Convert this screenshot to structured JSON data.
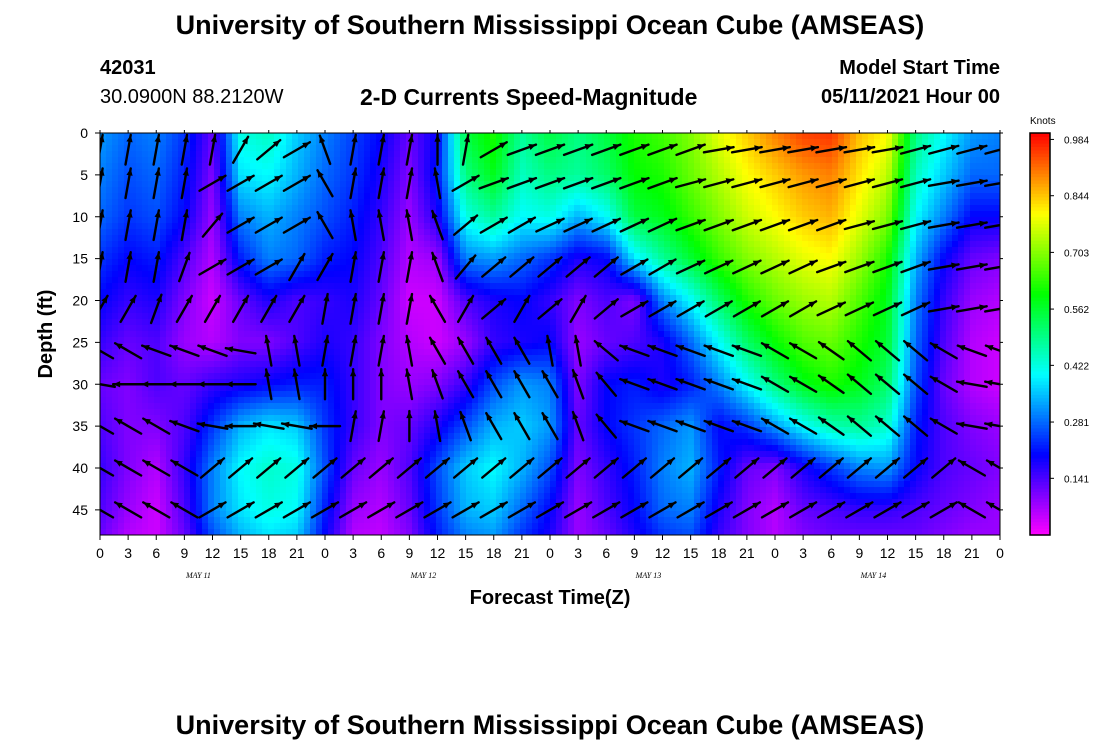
{
  "header": {
    "title_top": "University of Southern Mississippi Ocean Cube (AMSEAS)",
    "title_bottom": "University of Southern Mississippi Ocean Cube (AMSEAS)",
    "station_id": "42031",
    "station_location": "30.0900N  88.2120W",
    "chart_title": "2-D Currents Speed-Magnitude",
    "model_start_label": "Model Start Time",
    "model_start_value": "05/11/2021 Hour 00"
  },
  "chart_data": {
    "type": "heatmap",
    "title": "2-D Currents Speed-Magnitude",
    "xlabel": "Forecast Time(Z)",
    "ylabel": "Depth (ft)",
    "x_tick_labels": [
      "0",
      "3",
      "6",
      "9",
      "12",
      "15",
      "18",
      "21",
      "0",
      "3",
      "6",
      "9",
      "12",
      "15",
      "18",
      "21",
      "0",
      "3",
      "6",
      "9",
      "12",
      "15",
      "18",
      "21",
      "0",
      "3",
      "6",
      "9",
      "12",
      "15",
      "18",
      "21",
      "0"
    ],
    "day_labels": [
      "MAY 11",
      "MAY 12",
      "MAY 13",
      "MAY 14"
    ],
    "y_ticks": [
      0,
      5,
      10,
      15,
      20,
      25,
      30,
      35,
      40,
      45
    ],
    "ylim": [
      0,
      48
    ],
    "xlim_hours": [
      0,
      96
    ],
    "colorbar": {
      "units": "Knots",
      "tick_values": [
        0.984,
        0.844,
        0.703,
        0.562,
        0.422,
        0.281,
        0.141
      ],
      "tick_labels": [
        "0.984",
        "0.844",
        "0.703",
        "0.562",
        "0.422",
        "0.281",
        "0.141"
      ],
      "range": [
        0,
        1.0
      ],
      "colors": [
        "#ff00ff",
        "#8000ff",
        "#0000ff",
        "#0080ff",
        "#00ffff",
        "#00ff80",
        "#00ff00",
        "#80ff00",
        "#ffff00",
        "#ff8000",
        "#ff0000"
      ]
    },
    "speed_grid": {
      "hours": [
        0,
        3,
        6,
        9,
        12,
        15,
        18,
        21,
        24,
        27,
        30,
        33,
        36,
        39,
        42,
        45,
        48,
        51,
        54,
        57,
        60,
        63,
        66,
        69,
        72,
        75,
        78,
        81,
        84,
        87,
        90,
        93,
        96
      ],
      "depths_ft": [
        0,
        5,
        10,
        15,
        20,
        25,
        30,
        35,
        40,
        45,
        48
      ],
      "values": [
        [
          0.32,
          0.28,
          0.3,
          0.24,
          0.12,
          0.42,
          0.45,
          0.36,
          0.3,
          0.25,
          0.2,
          0.12,
          0.2,
          0.55,
          0.62,
          0.48,
          0.55,
          0.5,
          0.55,
          0.62,
          0.65,
          0.7,
          0.78,
          0.84,
          0.9,
          0.95,
          0.96,
          0.85,
          0.8,
          0.5,
          0.4,
          0.32,
          0.3
        ],
        [
          0.3,
          0.26,
          0.28,
          0.22,
          0.1,
          0.38,
          0.4,
          0.34,
          0.28,
          0.24,
          0.18,
          0.1,
          0.22,
          0.5,
          0.58,
          0.45,
          0.5,
          0.48,
          0.52,
          0.6,
          0.62,
          0.68,
          0.74,
          0.8,
          0.84,
          0.88,
          0.9,
          0.82,
          0.75,
          0.45,
          0.36,
          0.28,
          0.28
        ],
        [
          0.28,
          0.24,
          0.26,
          0.2,
          0.08,
          0.3,
          0.34,
          0.3,
          0.26,
          0.22,
          0.16,
          0.08,
          0.18,
          0.42,
          0.48,
          0.4,
          0.42,
          0.34,
          0.4,
          0.55,
          0.58,
          0.64,
          0.7,
          0.76,
          0.8,
          0.84,
          0.86,
          0.78,
          0.7,
          0.4,
          0.3,
          0.2,
          0.2
        ],
        [
          0.24,
          0.2,
          0.22,
          0.14,
          0.06,
          0.22,
          0.3,
          0.28,
          0.22,
          0.2,
          0.14,
          0.06,
          0.08,
          0.3,
          0.32,
          0.28,
          0.24,
          0.18,
          0.2,
          0.38,
          0.48,
          0.56,
          0.64,
          0.7,
          0.74,
          0.78,
          0.8,
          0.72,
          0.62,
          0.34,
          0.2,
          0.12,
          0.1
        ],
        [
          0.2,
          0.16,
          0.18,
          0.1,
          0.04,
          0.12,
          0.18,
          0.14,
          0.16,
          0.18,
          0.12,
          0.04,
          0.04,
          0.14,
          0.18,
          0.2,
          0.16,
          0.1,
          0.14,
          0.1,
          0.3,
          0.4,
          0.52,
          0.62,
          0.68,
          0.72,
          0.74,
          0.66,
          0.58,
          0.3,
          0.16,
          0.08,
          0.06
        ],
        [
          0.16,
          0.12,
          0.14,
          0.08,
          0.06,
          0.1,
          0.1,
          0.14,
          0.18,
          0.16,
          0.1,
          0.06,
          0.04,
          0.08,
          0.16,
          0.18,
          0.2,
          0.08,
          0.12,
          0.14,
          0.18,
          0.28,
          0.4,
          0.52,
          0.6,
          0.66,
          0.68,
          0.62,
          0.56,
          0.28,
          0.14,
          0.06,
          0.04
        ],
        [
          0.12,
          0.1,
          0.14,
          0.12,
          0.16,
          0.18,
          0.2,
          0.22,
          0.22,
          0.16,
          0.1,
          0.08,
          0.1,
          0.16,
          0.26,
          0.32,
          0.3,
          0.1,
          0.2,
          0.22,
          0.18,
          0.22,
          0.3,
          0.4,
          0.5,
          0.58,
          0.62,
          0.58,
          0.52,
          0.26,
          0.12,
          0.06,
          0.04
        ],
        [
          0.14,
          0.1,
          0.1,
          0.14,
          0.24,
          0.34,
          0.38,
          0.36,
          0.24,
          0.16,
          0.1,
          0.12,
          0.18,
          0.26,
          0.34,
          0.36,
          0.32,
          0.12,
          0.2,
          0.24,
          0.28,
          0.32,
          0.2,
          0.24,
          0.32,
          0.4,
          0.46,
          0.48,
          0.44,
          0.22,
          0.14,
          0.1,
          0.08
        ],
        [
          0.16,
          0.1,
          0.06,
          0.16,
          0.3,
          0.4,
          0.44,
          0.42,
          0.26,
          0.12,
          0.08,
          0.14,
          0.26,
          0.36,
          0.4,
          0.34,
          0.26,
          0.1,
          0.16,
          0.22,
          0.3,
          0.34,
          0.22,
          0.12,
          0.1,
          0.18,
          0.24,
          0.3,
          0.32,
          0.2,
          0.14,
          0.12,
          0.1
        ],
        [
          0.14,
          0.08,
          0.04,
          0.14,
          0.3,
          0.38,
          0.42,
          0.4,
          0.22,
          0.08,
          0.06,
          0.12,
          0.24,
          0.34,
          0.36,
          0.28,
          0.2,
          0.08,
          0.14,
          0.2,
          0.28,
          0.3,
          0.18,
          0.1,
          0.06,
          0.12,
          0.14,
          0.16,
          0.16,
          0.14,
          0.12,
          0.1,
          0.08
        ],
        [
          0.12,
          0.06,
          0.04,
          0.12,
          0.26,
          0.34,
          0.38,
          0.36,
          0.2,
          0.06,
          0.05,
          0.1,
          0.22,
          0.3,
          0.32,
          0.24,
          0.18,
          0.08,
          0.12,
          0.18,
          0.24,
          0.26,
          0.16,
          0.1,
          0.06,
          0.1,
          0.12,
          0.12,
          0.12,
          0.12,
          0.1,
          0.08,
          0.08
        ]
      ]
    }
  },
  "vectors": {
    "depths_ft": [
      2,
      6,
      11,
      16,
      21,
      26,
      30,
      35,
      40,
      45
    ],
    "angles_deg": [
      [
        80,
        80,
        80,
        80,
        80,
        60,
        40,
        30,
        110,
        80,
        80,
        80,
        90,
        80,
        30,
        20,
        20,
        20,
        20,
        20,
        20,
        20,
        10,
        10,
        10,
        10,
        10,
        10,
        10,
        15,
        15,
        15,
        15
      ],
      [
        80,
        80,
        80,
        80,
        30,
        30,
        30,
        30,
        120,
        80,
        80,
        80,
        100,
        30,
        20,
        20,
        20,
        20,
        20,
        20,
        20,
        15,
        15,
        15,
        15,
        15,
        15,
        15,
        15,
        15,
        10,
        10,
        10
      ],
      [
        80,
        80,
        80,
        80,
        50,
        30,
        30,
        30,
        120,
        100,
        100,
        100,
        110,
        40,
        30,
        30,
        25,
        25,
        25,
        25,
        25,
        20,
        20,
        20,
        20,
        20,
        20,
        15,
        15,
        15,
        10,
        10,
        10
      ],
      [
        80,
        80,
        80,
        70,
        30,
        30,
        30,
        60,
        60,
        80,
        80,
        80,
        110,
        50,
        40,
        40,
        40,
        40,
        40,
        30,
        30,
        25,
        25,
        25,
        25,
        25,
        20,
        20,
        20,
        20,
        10,
        10,
        10
      ],
      [
        60,
        60,
        70,
        60,
        60,
        60,
        60,
        60,
        80,
        80,
        80,
        80,
        120,
        60,
        40,
        60,
        40,
        60,
        40,
        30,
        30,
        30,
        30,
        30,
        30,
        30,
        25,
        25,
        25,
        25,
        10,
        10,
        10
      ],
      [
        150,
        150,
        160,
        160,
        160,
        170,
        100,
        100,
        80,
        80,
        80,
        100,
        120,
        120,
        120,
        120,
        100,
        100,
        140,
        160,
        160,
        160,
        160,
        160,
        150,
        150,
        145,
        140,
        140,
        140,
        150,
        160,
        160
      ],
      [
        170,
        180,
        180,
        180,
        180,
        180,
        100,
        100,
        90,
        90,
        90,
        100,
        110,
        120,
        120,
        120,
        120,
        110,
        130,
        160,
        160,
        160,
        160,
        160,
        150,
        150,
        145,
        140,
        140,
        140,
        150,
        170,
        170
      ],
      [
        150,
        150,
        150,
        160,
        170,
        180,
        170,
        170,
        180,
        80,
        80,
        90,
        100,
        110,
        120,
        120,
        120,
        110,
        130,
        160,
        160,
        160,
        160,
        160,
        150,
        150,
        145,
        140,
        140,
        140,
        150,
        170,
        170
      ],
      [
        150,
        150,
        150,
        150,
        40,
        40,
        40,
        40,
        40,
        40,
        40,
        40,
        40,
        40,
        40,
        40,
        40,
        40,
        40,
        40,
        40,
        40,
        40,
        40,
        40,
        40,
        40,
        40,
        40,
        40,
        40,
        150,
        150
      ],
      [
        150,
        150,
        150,
        150,
        30,
        30,
        30,
        30,
        30,
        30,
        30,
        30,
        30,
        30,
        30,
        30,
        30,
        30,
        30,
        30,
        30,
        30,
        30,
        30,
        30,
        30,
        30,
        30,
        30,
        30,
        30,
        150,
        150
      ]
    ]
  }
}
